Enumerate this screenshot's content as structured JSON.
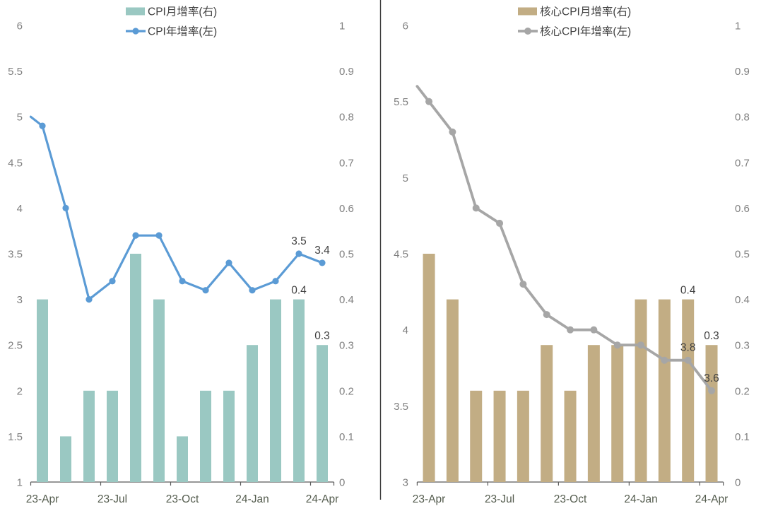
{
  "page": {
    "background": "#ffffff"
  },
  "colors": {
    "bar_teal": "#9AC8C2",
    "bar_tan": "#C2AD84",
    "line_blue": "#5B9BD5",
    "line_gray": "#A6A6A6",
    "y_axis_text": "#7F7F7F",
    "x_axis_text": "#545C4E",
    "data_label": "#404040",
    "axis_line": "#595959",
    "divider": "#3F3F3F"
  },
  "chart_data": [
    {
      "type": "bar",
      "subtype": "combo-bar-line-dual-axis",
      "panel": "left",
      "categories": [
        "23-Apr",
        "23-May",
        "23-Jun",
        "23-Jul",
        "23-Aug",
        "23-Sep",
        "23-Oct",
        "23-Nov",
        "23-Dec",
        "24-Jan",
        "24-Feb",
        "24-Mar",
        "24-Apr"
      ],
      "x_tick_labels": [
        "23-Apr",
        "23-Jul",
        "23-Oct",
        "24-Jan",
        "24-Apr"
      ],
      "x_tick_category_indexes": [
        0,
        3,
        6,
        9,
        12
      ],
      "left_axis": {
        "range": [
          1,
          6
        ],
        "tick_labels": [
          "6",
          "5.5",
          "5",
          "4.5",
          "4",
          "3.5",
          "3",
          "2.5",
          "2",
          "1.5",
          "1"
        ]
      },
      "right_axis": {
        "range": [
          0,
          1
        ],
        "tick_labels": [
          "1",
          "0.9",
          "0.8",
          "0.7",
          "0.6",
          "0.5",
          "0.4",
          "0.3",
          "0.2",
          "0.1",
          "0"
        ]
      },
      "grid": false,
      "legend_position": "top",
      "series": [
        {
          "name": "CPI月增率(右)",
          "kind": "bar",
          "axis": "right",
          "color_key": "bar_teal",
          "values": [
            0.4,
            0.1,
            0.2,
            0.2,
            0.5,
            0.4,
            0.1,
            0.2,
            0.2,
            0.3,
            0.4,
            0.4,
            0.3
          ],
          "point_labels": {
            "11": "0.4",
            "12": "0.3"
          }
        },
        {
          "name": "CPI年增率(左)",
          "kind": "line",
          "axis": "left",
          "color_key": "line_blue",
          "values": [
            4.9,
            4.0,
            3.0,
            3.2,
            3.7,
            3.7,
            3.2,
            3.1,
            3.4,
            3.1,
            3.2,
            3.5,
            3.4
          ],
          "lead_in_value": 5.0,
          "point_labels": {
            "11": "3.5",
            "12": "3.4"
          }
        }
      ]
    },
    {
      "type": "bar",
      "subtype": "combo-bar-line-dual-axis",
      "panel": "right",
      "categories": [
        "23-Apr",
        "23-May",
        "23-Jun",
        "23-Jul",
        "23-Aug",
        "23-Sep",
        "23-Oct",
        "23-Nov",
        "23-Dec",
        "24-Jan",
        "24-Feb",
        "24-Mar",
        "24-Apr"
      ],
      "x_tick_labels": [
        "23-Apr",
        "23-Jul",
        "23-Oct",
        "24-Jan",
        "24-Apr"
      ],
      "x_tick_category_indexes": [
        0,
        3,
        6,
        9,
        12
      ],
      "left_axis": {
        "range": [
          3,
          6
        ],
        "tick_labels": [
          "6",
          "5.5",
          "5",
          "4.5",
          "4",
          "3.5",
          "3"
        ]
      },
      "right_axis": {
        "range": [
          0,
          1
        ],
        "tick_labels": [
          "1",
          "0.9",
          "0.8",
          "0.7",
          "0.6",
          "0.5",
          "0.4",
          "0.3",
          "0.2",
          "0.1",
          "0"
        ]
      },
      "grid": false,
      "legend_position": "top",
      "series": [
        {
          "name": "核心CPI月增率(右)",
          "kind": "bar",
          "axis": "right",
          "color_key": "bar_tan",
          "values": [
            0.5,
            0.4,
            0.2,
            0.2,
            0.2,
            0.3,
            0.2,
            0.3,
            0.3,
            0.4,
            0.4,
            0.4,
            0.3
          ],
          "point_labels": {
            "11": "0.4",
            "12": "0.3"
          }
        },
        {
          "name": "核心CPI年增率(左)",
          "kind": "line",
          "axis": "left",
          "color_key": "line_gray",
          "values": [
            5.5,
            5.3,
            4.8,
            4.7,
            4.3,
            4.1,
            4.0,
            4.0,
            3.9,
            3.9,
            3.8,
            3.8,
            3.6
          ],
          "lead_in_value": 5.6,
          "point_labels": {
            "11": "3.8",
            "12": "3.6"
          }
        }
      ]
    }
  ]
}
